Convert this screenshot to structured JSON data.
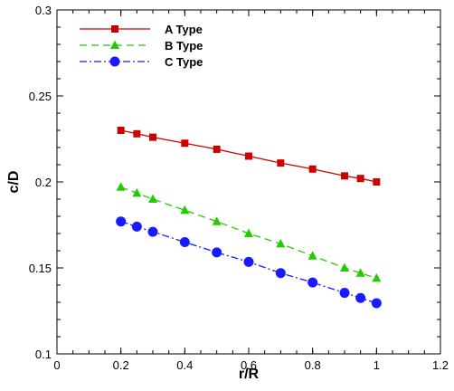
{
  "chart_data": {
    "type": "line",
    "title": "",
    "xlabel": "r/R",
    "ylabel": "c/D",
    "xlim": [
      0,
      1.2
    ],
    "ylim": [
      0.1,
      0.3
    ],
    "x_ticks": [
      "0",
      "0.2",
      "0.4",
      "0.6",
      "0.8",
      "1",
      "1.2"
    ],
    "y_ticks": [
      "0.1",
      "0.15",
      "0.2",
      "0.25",
      "0.3"
    ],
    "grid": false,
    "legend_position": "top-left",
    "x": [
      0.2,
      0.25,
      0.3,
      0.4,
      0.5,
      0.6,
      0.7,
      0.8,
      0.9,
      0.95,
      1.0
    ],
    "series": [
      {
        "name": "A Type",
        "color": "#cc0000",
        "marker": "square",
        "line_style": "solid",
        "values": [
          0.23,
          0.228,
          0.226,
          0.2225,
          0.219,
          0.215,
          0.211,
          0.2075,
          0.2035,
          0.202,
          0.2
        ]
      },
      {
        "name": "B Type",
        "color": "#22cc00",
        "marker": "triangle",
        "line_style": "dashed",
        "values": [
          0.197,
          0.1935,
          0.19,
          0.1835,
          0.177,
          0.17,
          0.164,
          0.157,
          0.15,
          0.147,
          0.144
        ]
      },
      {
        "name": "C Type",
        "color": "#1a1aff",
        "marker": "circle",
        "line_style": "dash-dot",
        "values": [
          0.177,
          0.174,
          0.171,
          0.165,
          0.159,
          0.1535,
          0.147,
          0.1415,
          0.1355,
          0.1325,
          0.1295
        ]
      }
    ]
  }
}
